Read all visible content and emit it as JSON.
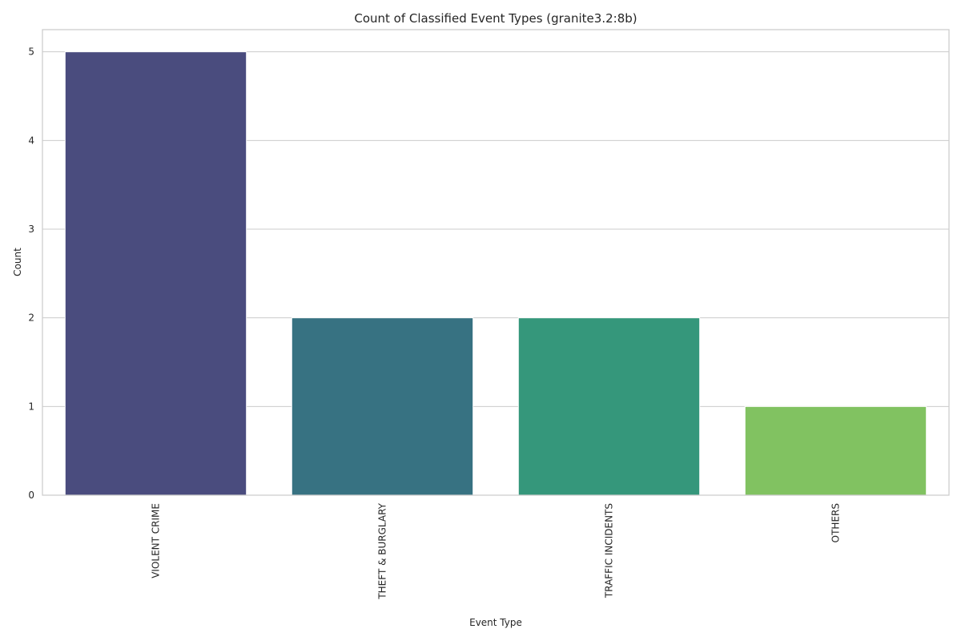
{
  "chart_data": {
    "type": "bar",
    "title": "Count of Classified Event Types (granite3.2:8b)",
    "xlabel": "Event Type",
    "ylabel": "Count",
    "categories": [
      "VIOLENT CRIME",
      "THEFT & BURGLARY",
      "TRAFFIC INCIDENTS",
      "OTHERS"
    ],
    "values": [
      5,
      2,
      2,
      1
    ],
    "colors": [
      "#4a4c7e",
      "#377282",
      "#35977b",
      "#81c261"
    ],
    "ylim": [
      0,
      5.25
    ],
    "yticks": [
      "0",
      "1",
      "2",
      "3",
      "4",
      "5"
    ],
    "grid": true,
    "xtick_rotation": "vertical"
  }
}
